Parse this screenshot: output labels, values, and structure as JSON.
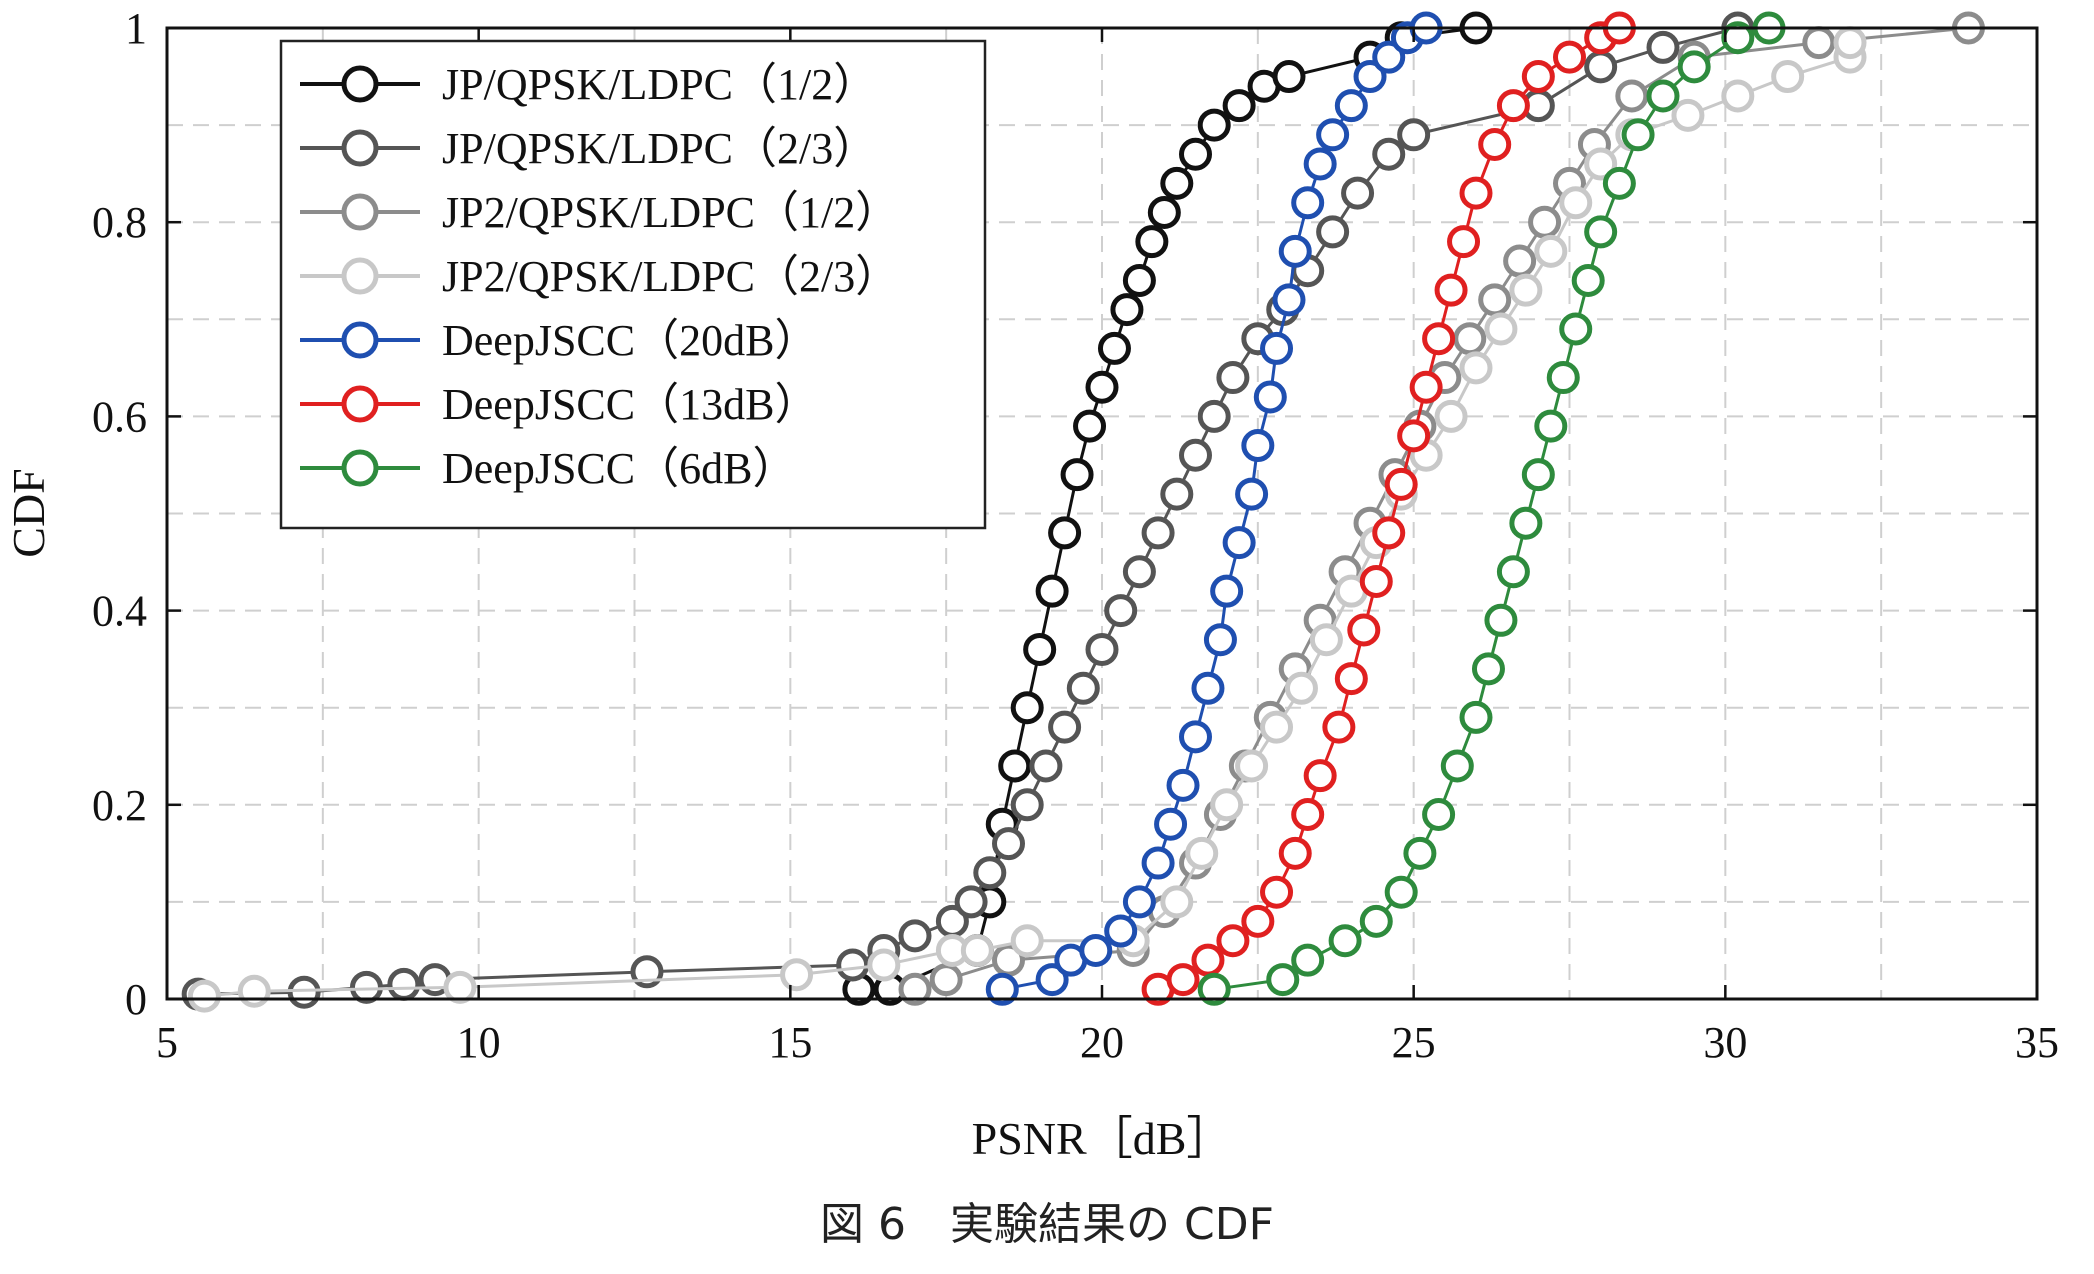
{
  "chart_data": {
    "type": "line",
    "xlabel": "PSNR［dB］",
    "ylabel": "CDF",
    "xlim": [
      5,
      35
    ],
    "ylim": [
      0,
      1
    ],
    "xticks": [
      5,
      10,
      15,
      20,
      25,
      30,
      35
    ],
    "xtick_labels": [
      "5",
      "10",
      "15",
      "20",
      "25",
      "30",
      "35"
    ],
    "yticks": [
      0,
      0.2,
      0.4,
      0.6,
      0.8,
      1
    ],
    "ytick_labels": [
      "0",
      "0.2",
      "0.4",
      "0.6",
      "0.8",
      "1"
    ],
    "grid": true,
    "legend_position": "top-left",
    "marker": "open-circle",
    "series": [
      {
        "name": "JP/QPSK/LDPC（1/2）",
        "color": "#111111",
        "points": [
          [
            16.1,
            0.01
          ],
          [
            16.6,
            0.01
          ],
          [
            18.0,
            0.05
          ],
          [
            18.2,
            0.1
          ],
          [
            18.4,
            0.18
          ],
          [
            18.6,
            0.24
          ],
          [
            18.8,
            0.3
          ],
          [
            19.0,
            0.36
          ],
          [
            19.2,
            0.42
          ],
          [
            19.4,
            0.48
          ],
          [
            19.6,
            0.54
          ],
          [
            19.8,
            0.59
          ],
          [
            20.0,
            0.63
          ],
          [
            20.2,
            0.67
          ],
          [
            20.4,
            0.71
          ],
          [
            20.6,
            0.74
          ],
          [
            20.8,
            0.78
          ],
          [
            21.0,
            0.81
          ],
          [
            21.2,
            0.84
          ],
          [
            21.5,
            0.87
          ],
          [
            21.8,
            0.9
          ],
          [
            22.2,
            0.92
          ],
          [
            22.6,
            0.94
          ],
          [
            23.0,
            0.95
          ],
          [
            24.3,
            0.97
          ],
          [
            24.8,
            0.99
          ],
          [
            26.0,
            1.0
          ]
        ]
      },
      {
        "name": "JP/QPSK/LDPC（2/3）",
        "color": "#555555",
        "points": [
          [
            5.5,
            0.005
          ],
          [
            7.2,
            0.007
          ],
          [
            8.2,
            0.012
          ],
          [
            8.8,
            0.015
          ],
          [
            9.3,
            0.02
          ],
          [
            12.7,
            0.028
          ],
          [
            16.0,
            0.035
          ],
          [
            16.5,
            0.05
          ],
          [
            17.0,
            0.065
          ],
          [
            17.6,
            0.08
          ],
          [
            17.9,
            0.1
          ],
          [
            18.2,
            0.13
          ],
          [
            18.5,
            0.16
          ],
          [
            18.8,
            0.2
          ],
          [
            19.1,
            0.24
          ],
          [
            19.4,
            0.28
          ],
          [
            19.7,
            0.32
          ],
          [
            20.0,
            0.36
          ],
          [
            20.3,
            0.4
          ],
          [
            20.6,
            0.44
          ],
          [
            20.9,
            0.48
          ],
          [
            21.2,
            0.52
          ],
          [
            21.5,
            0.56
          ],
          [
            21.8,
            0.6
          ],
          [
            22.1,
            0.64
          ],
          [
            22.5,
            0.68
          ],
          [
            22.9,
            0.71
          ],
          [
            23.3,
            0.75
          ],
          [
            23.7,
            0.79
          ],
          [
            24.1,
            0.83
          ],
          [
            24.6,
            0.87
          ],
          [
            25.0,
            0.89
          ],
          [
            27.0,
            0.92
          ],
          [
            28.0,
            0.96
          ],
          [
            29.0,
            0.98
          ],
          [
            30.2,
            1.0
          ]
        ]
      },
      {
        "name": "JP2/QPSK/LDPC（1/2）",
        "color": "#8c8c8c",
        "points": [
          [
            17.0,
            0.01
          ],
          [
            17.5,
            0.02
          ],
          [
            18.5,
            0.04
          ],
          [
            20.5,
            0.05
          ],
          [
            21.0,
            0.09
          ],
          [
            21.5,
            0.14
          ],
          [
            21.9,
            0.19
          ],
          [
            22.3,
            0.24
          ],
          [
            22.7,
            0.29
          ],
          [
            23.1,
            0.34
          ],
          [
            23.5,
            0.39
          ],
          [
            23.9,
            0.44
          ],
          [
            24.3,
            0.49
          ],
          [
            24.7,
            0.54
          ],
          [
            25.1,
            0.59
          ],
          [
            25.5,
            0.64
          ],
          [
            25.9,
            0.68
          ],
          [
            26.3,
            0.72
          ],
          [
            26.7,
            0.76
          ],
          [
            27.1,
            0.8
          ],
          [
            27.5,
            0.84
          ],
          [
            27.9,
            0.88
          ],
          [
            28.5,
            0.93
          ],
          [
            29.5,
            0.97
          ],
          [
            31.5,
            0.985
          ],
          [
            33.9,
            1.0
          ]
        ]
      },
      {
        "name": "JP2/QPSK/LDPC（2/3）",
        "color": "#c8c8c8",
        "points": [
          [
            5.6,
            0.003
          ],
          [
            6.4,
            0.008
          ],
          [
            9.7,
            0.012
          ],
          [
            15.1,
            0.025
          ],
          [
            16.5,
            0.035
          ],
          [
            17.6,
            0.05
          ],
          [
            18.0,
            0.05
          ],
          [
            18.8,
            0.06
          ],
          [
            20.5,
            0.06
          ],
          [
            21.2,
            0.1
          ],
          [
            21.6,
            0.15
          ],
          [
            22.0,
            0.2
          ],
          [
            22.4,
            0.24
          ],
          [
            22.8,
            0.28
          ],
          [
            23.2,
            0.32
          ],
          [
            23.6,
            0.37
          ],
          [
            24.0,
            0.42
          ],
          [
            24.4,
            0.47
          ],
          [
            24.8,
            0.52
          ],
          [
            25.2,
            0.56
          ],
          [
            25.6,
            0.6
          ],
          [
            26.0,
            0.65
          ],
          [
            26.4,
            0.69
          ],
          [
            26.8,
            0.73
          ],
          [
            27.2,
            0.77
          ],
          [
            27.6,
            0.82
          ],
          [
            28.0,
            0.86
          ],
          [
            28.5,
            0.89
          ],
          [
            29.4,
            0.91
          ],
          [
            30.2,
            0.93
          ],
          [
            31.0,
            0.95
          ],
          [
            32.0,
            0.97
          ],
          [
            32.0,
            0.985
          ]
        ]
      },
      {
        "name": "DeepJSCC（20dB）",
        "color": "#1f4fb0",
        "points": [
          [
            18.4,
            0.01
          ],
          [
            19.2,
            0.02
          ],
          [
            19.5,
            0.04
          ],
          [
            19.9,
            0.05
          ],
          [
            20.3,
            0.07
          ],
          [
            20.6,
            0.1
          ],
          [
            20.9,
            0.14
          ],
          [
            21.1,
            0.18
          ],
          [
            21.3,
            0.22
          ],
          [
            21.5,
            0.27
          ],
          [
            21.7,
            0.32
          ],
          [
            21.9,
            0.37
          ],
          [
            22.0,
            0.42
          ],
          [
            22.2,
            0.47
          ],
          [
            22.4,
            0.52
          ],
          [
            22.5,
            0.57
          ],
          [
            22.7,
            0.62
          ],
          [
            22.8,
            0.67
          ],
          [
            23.0,
            0.72
          ],
          [
            23.1,
            0.77
          ],
          [
            23.3,
            0.82
          ],
          [
            23.5,
            0.86
          ],
          [
            23.7,
            0.89
          ],
          [
            24.0,
            0.92
          ],
          [
            24.3,
            0.95
          ],
          [
            24.6,
            0.97
          ],
          [
            24.9,
            0.99
          ],
          [
            25.2,
            1.0
          ]
        ]
      },
      {
        "name": "DeepJSCC（13dB）",
        "color": "#e02020",
        "points": [
          [
            20.9,
            0.01
          ],
          [
            21.3,
            0.02
          ],
          [
            21.7,
            0.04
          ],
          [
            22.1,
            0.06
          ],
          [
            22.5,
            0.08
          ],
          [
            22.8,
            0.11
          ],
          [
            23.1,
            0.15
          ],
          [
            23.3,
            0.19
          ],
          [
            23.5,
            0.23
          ],
          [
            23.8,
            0.28
          ],
          [
            24.0,
            0.33
          ],
          [
            24.2,
            0.38
          ],
          [
            24.4,
            0.43
          ],
          [
            24.6,
            0.48
          ],
          [
            24.8,
            0.53
          ],
          [
            25.0,
            0.58
          ],
          [
            25.2,
            0.63
          ],
          [
            25.4,
            0.68
          ],
          [
            25.6,
            0.73
          ],
          [
            25.8,
            0.78
          ],
          [
            26.0,
            0.83
          ],
          [
            26.3,
            0.88
          ],
          [
            26.6,
            0.92
          ],
          [
            27.0,
            0.95
          ],
          [
            27.5,
            0.97
          ],
          [
            28.0,
            0.99
          ],
          [
            28.3,
            1.0
          ]
        ]
      },
      {
        "name": "DeepJSCC（6dB）",
        "color": "#2e8b3d",
        "points": [
          [
            21.8,
            0.01
          ],
          [
            22.9,
            0.02
          ],
          [
            23.3,
            0.04
          ],
          [
            23.9,
            0.06
          ],
          [
            24.4,
            0.08
          ],
          [
            24.8,
            0.11
          ],
          [
            25.1,
            0.15
          ],
          [
            25.4,
            0.19
          ],
          [
            25.7,
            0.24
          ],
          [
            26.0,
            0.29
          ],
          [
            26.2,
            0.34
          ],
          [
            26.4,
            0.39
          ],
          [
            26.6,
            0.44
          ],
          [
            26.8,
            0.49
          ],
          [
            27.0,
            0.54
          ],
          [
            27.2,
            0.59
          ],
          [
            27.4,
            0.64
          ],
          [
            27.6,
            0.69
          ],
          [
            27.8,
            0.74
          ],
          [
            28.0,
            0.79
          ],
          [
            28.3,
            0.84
          ],
          [
            28.6,
            0.89
          ],
          [
            29.0,
            0.93
          ],
          [
            29.5,
            0.96
          ],
          [
            30.2,
            0.99
          ],
          [
            30.7,
            1.0
          ]
        ]
      }
    ]
  },
  "caption": "図 6　実験結果の CDF"
}
